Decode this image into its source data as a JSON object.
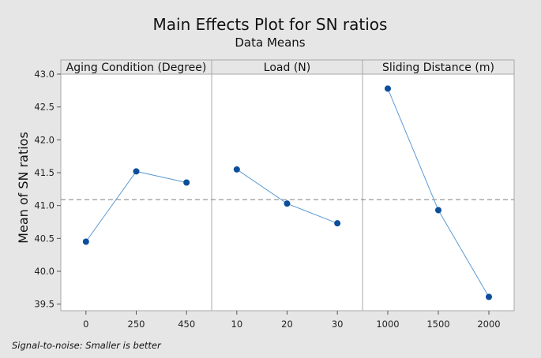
{
  "chart_data": {
    "type": "line",
    "title": "Main Effects Plot for SN ratios",
    "subtitle": "Data Means",
    "ylabel": "Mean of SN ratios",
    "ylim": [
      39.4,
      43.0
    ],
    "yticks": [
      39.5,
      40.0,
      40.5,
      41.0,
      41.5,
      42.0,
      42.5,
      43.0
    ],
    "ytick_labels": [
      "39.5",
      "40.0",
      "40.5",
      "41.0",
      "41.5",
      "42.0",
      "42.5",
      "43.0"
    ],
    "reference_line": 41.09,
    "panels": [
      {
        "name": "Aging Condition (Degree)",
        "categories": [
          "0",
          "250",
          "450"
        ],
        "values": [
          40.45,
          41.52,
          41.35
        ]
      },
      {
        "name": "Load (N)",
        "categories": [
          "10",
          "20",
          "30"
        ],
        "values": [
          41.55,
          41.03,
          40.73
        ]
      },
      {
        "name": "Sliding Distance (m)",
        "categories": [
          "1000",
          "1500",
          "2000"
        ],
        "values": [
          42.78,
          40.93,
          39.61
        ]
      }
    ],
    "footnote": "Signal-to-noise: Smaller is better",
    "colors": {
      "line": "#5b9bd5",
      "marker": "#0b4e9a",
      "reference": "#8c8c8c",
      "panel_bg": "#ffffff"
    }
  }
}
